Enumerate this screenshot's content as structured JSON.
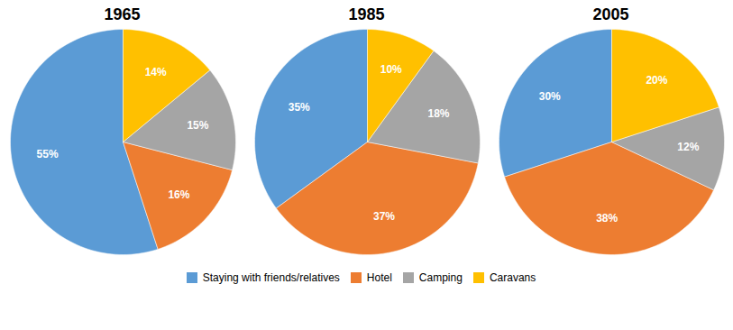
{
  "chart_data": [
    {
      "type": "pie",
      "title": "1965",
      "categories": [
        "Staying with friends/relatives",
        "Hotel",
        "Camping",
        "Caravans"
      ],
      "values": [
        55,
        16,
        15,
        14
      ],
      "value_labels": [
        "55%",
        "16%",
        "15%",
        "14%"
      ],
      "colors": [
        "#5B9BD5",
        "#ED7D31",
        "#A5A5A5",
        "#FFC000"
      ],
      "data_labels": true,
      "legend": "bottom"
    },
    {
      "type": "pie",
      "title": "1985",
      "categories": [
        "Staying with friends/relatives",
        "Hotel",
        "Camping",
        "Caravans"
      ],
      "values": [
        35,
        37,
        18,
        10
      ],
      "value_labels": [
        "35%",
        "37%",
        "18%",
        "10%"
      ],
      "colors": [
        "#5B9BD5",
        "#ED7D31",
        "#A5A5A5",
        "#FFC000"
      ],
      "data_labels": true,
      "legend": "bottom"
    },
    {
      "type": "pie",
      "title": "2005",
      "categories": [
        "Staying with friends/relatives",
        "Hotel",
        "Camping",
        "Caravans"
      ],
      "values": [
        30,
        38,
        12,
        20
      ],
      "value_labels": [
        "30%",
        "38%",
        "12%",
        "20%"
      ],
      "colors": [
        "#5B9BD5",
        "#ED7D31",
        "#A5A5A5",
        "#FFC000"
      ],
      "data_labels": true,
      "legend": "bottom"
    }
  ]
}
